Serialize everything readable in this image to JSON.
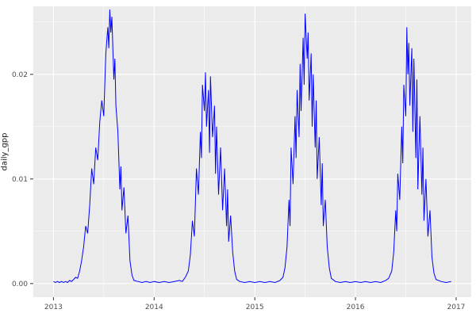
{
  "figure": {
    "kind": "ggplot2-style time series plot",
    "background": "#FFFFFF"
  },
  "chart_data": {
    "type": "line",
    "title": "",
    "xlabel": "",
    "ylabel": "daily_gpp",
    "line_color": "#0000FF",
    "panel_bg": "#EBEBEB",
    "grid_color": "#FFFFFF",
    "tick_color": "#333333",
    "tick_label_color": "#4D4D4D",
    "legend": "none",
    "xlim": [
      2012.8,
      2017.15
    ],
    "ylim": [
      -0.0013,
      0.0265
    ],
    "x_tick_values": [
      2013,
      2014,
      2015,
      2016,
      2017
    ],
    "x_tick_labels": [
      "2013",
      "2014",
      "2015",
      "2016",
      "2017"
    ],
    "y_tick_values": [
      0.0,
      0.01,
      0.02
    ],
    "y_tick_labels": [
      "0.00",
      "0.01",
      "0.02"
    ],
    "x_minor_ticks": [
      2013.5,
      2014.5,
      2015.5,
      2016.5
    ],
    "y_minor_ticks": [
      0.005,
      0.015,
      0.025
    ],
    "series": [
      {
        "name": "daily_gpp",
        "points": [
          [
            2013.0,
            0.0002
          ],
          [
            2013.02,
            0.0001
          ],
          [
            2013.04,
            0.0002
          ],
          [
            2013.06,
            0.0001
          ],
          [
            2013.08,
            0.0002
          ],
          [
            2013.1,
            0.0001
          ],
          [
            2013.12,
            0.0002
          ],
          [
            2013.14,
            0.0001
          ],
          [
            2013.16,
            0.0003
          ],
          [
            2013.18,
            0.0002
          ],
          [
            2013.2,
            0.0004
          ],
          [
            2013.22,
            0.0006
          ],
          [
            2013.24,
            0.0005
          ],
          [
            2013.26,
            0.0012
          ],
          [
            2013.28,
            0.0022
          ],
          [
            2013.3,
            0.0035
          ],
          [
            2013.32,
            0.0055
          ],
          [
            2013.34,
            0.0048
          ],
          [
            2013.36,
            0.0075
          ],
          [
            2013.38,
            0.011
          ],
          [
            2013.4,
            0.0095
          ],
          [
            2013.42,
            0.013
          ],
          [
            2013.44,
            0.0118
          ],
          [
            2013.46,
            0.0155
          ],
          [
            2013.48,
            0.0175
          ],
          [
            2013.5,
            0.016
          ],
          [
            2013.52,
            0.022
          ],
          [
            2013.54,
            0.0245
          ],
          [
            2013.55,
            0.0225
          ],
          [
            2013.56,
            0.0262
          ],
          [
            2013.57,
            0.024
          ],
          [
            2013.58,
            0.0255
          ],
          [
            2013.6,
            0.0195
          ],
          [
            2013.61,
            0.0215
          ],
          [
            2013.62,
            0.017
          ],
          [
            2013.64,
            0.0145
          ],
          [
            2013.66,
            0.009
          ],
          [
            2013.67,
            0.0112
          ],
          [
            2013.68,
            0.007
          ],
          [
            2013.7,
            0.0092
          ],
          [
            2013.72,
            0.0048
          ],
          [
            2013.74,
            0.0065
          ],
          [
            2013.76,
            0.0022
          ],
          [
            2013.78,
            0.0008
          ],
          [
            2013.8,
            0.0003
          ],
          [
            2013.84,
            0.0002
          ],
          [
            2013.88,
            0.0001
          ],
          [
            2013.92,
            0.0002
          ],
          [
            2013.96,
            0.0001
          ],
          [
            2014.0,
            0.0002
          ],
          [
            2014.05,
            0.0001
          ],
          [
            2014.1,
            0.0002
          ],
          [
            2014.15,
            0.0001
          ],
          [
            2014.2,
            0.0002
          ],
          [
            2014.25,
            0.0003
          ],
          [
            2014.28,
            0.0002
          ],
          [
            2014.31,
            0.0006
          ],
          [
            2014.34,
            0.0012
          ],
          [
            2014.36,
            0.0028
          ],
          [
            2014.38,
            0.006
          ],
          [
            2014.4,
            0.0045
          ],
          [
            2014.42,
            0.011
          ],
          [
            2014.44,
            0.0085
          ],
          [
            2014.46,
            0.0145
          ],
          [
            2014.47,
            0.012
          ],
          [
            2014.48,
            0.019
          ],
          [
            2014.5,
            0.0165
          ],
          [
            2014.51,
            0.0202
          ],
          [
            2014.52,
            0.015
          ],
          [
            2014.54,
            0.0185
          ],
          [
            2014.55,
            0.0125
          ],
          [
            2014.56,
            0.0198
          ],
          [
            2014.58,
            0.014
          ],
          [
            2014.6,
            0.017
          ],
          [
            2014.61,
            0.0105
          ],
          [
            2014.62,
            0.015
          ],
          [
            2014.64,
            0.0085
          ],
          [
            2014.66,
            0.013
          ],
          [
            2014.68,
            0.007
          ],
          [
            2014.7,
            0.011
          ],
          [
            2014.72,
            0.0055
          ],
          [
            2014.73,
            0.009
          ],
          [
            2014.74,
            0.004
          ],
          [
            2014.76,
            0.0065
          ],
          [
            2014.78,
            0.003
          ],
          [
            2014.8,
            0.0012
          ],
          [
            2014.82,
            0.0004
          ],
          [
            2014.85,
            0.0002
          ],
          [
            2014.9,
            0.0001
          ],
          [
            2014.95,
            0.0002
          ],
          [
            2015.0,
            0.0001
          ],
          [
            2015.05,
            0.0002
          ],
          [
            2015.1,
            0.0001
          ],
          [
            2015.15,
            0.0002
          ],
          [
            2015.2,
            0.0001
          ],
          [
            2015.25,
            0.0003
          ],
          [
            2015.28,
            0.0006
          ],
          [
            2015.3,
            0.0015
          ],
          [
            2015.32,
            0.0035
          ],
          [
            2015.34,
            0.008
          ],
          [
            2015.35,
            0.0055
          ],
          [
            2015.36,
            0.013
          ],
          [
            2015.38,
            0.0095
          ],
          [
            2015.4,
            0.016
          ],
          [
            2015.41,
            0.012
          ],
          [
            2015.42,
            0.0185
          ],
          [
            2015.44,
            0.014
          ],
          [
            2015.45,
            0.021
          ],
          [
            2015.46,
            0.0165
          ],
          [
            2015.48,
            0.0235
          ],
          [
            2015.49,
            0.019
          ],
          [
            2015.5,
            0.0258
          ],
          [
            2015.52,
            0.0215
          ],
          [
            2015.53,
            0.024
          ],
          [
            2015.54,
            0.0175
          ],
          [
            2015.56,
            0.022
          ],
          [
            2015.57,
            0.015
          ],
          [
            2015.58,
            0.02
          ],
          [
            2015.6,
            0.013
          ],
          [
            2015.61,
            0.0175
          ],
          [
            2015.62,
            0.01
          ],
          [
            2015.64,
            0.014
          ],
          [
            2015.66,
            0.0075
          ],
          [
            2015.67,
            0.0115
          ],
          [
            2015.68,
            0.0055
          ],
          [
            2015.7,
            0.008
          ],
          [
            2015.72,
            0.0035
          ],
          [
            2015.74,
            0.0015
          ],
          [
            2015.76,
            0.0005
          ],
          [
            2015.8,
            0.0002
          ],
          [
            2015.85,
            0.0001
          ],
          [
            2015.9,
            0.0002
          ],
          [
            2015.95,
            0.0001
          ],
          [
            2016.0,
            0.0002
          ],
          [
            2016.05,
            0.0001
          ],
          [
            2016.1,
            0.0002
          ],
          [
            2016.15,
            0.0001
          ],
          [
            2016.2,
            0.0002
          ],
          [
            2016.25,
            0.0001
          ],
          [
            2016.3,
            0.0003
          ],
          [
            2016.33,
            0.0005
          ],
          [
            2016.36,
            0.0012
          ],
          [
            2016.38,
            0.003
          ],
          [
            2016.4,
            0.007
          ],
          [
            2016.41,
            0.005
          ],
          [
            2016.42,
            0.0105
          ],
          [
            2016.44,
            0.008
          ],
          [
            2016.46,
            0.015
          ],
          [
            2016.47,
            0.0115
          ],
          [
            2016.48,
            0.019
          ],
          [
            2016.5,
            0.016
          ],
          [
            2016.51,
            0.0245
          ],
          [
            2016.52,
            0.02
          ],
          [
            2016.53,
            0.023
          ],
          [
            2016.54,
            0.017
          ],
          [
            2016.56,
            0.0225
          ],
          [
            2016.57,
            0.0145
          ],
          [
            2016.58,
            0.0215
          ],
          [
            2016.6,
            0.012
          ],
          [
            2016.61,
            0.0195
          ],
          [
            2016.62,
            0.009
          ],
          [
            2016.64,
            0.016
          ],
          [
            2016.66,
            0.0085
          ],
          [
            2016.67,
            0.013
          ],
          [
            2016.68,
            0.006
          ],
          [
            2016.7,
            0.01
          ],
          [
            2016.72,
            0.0045
          ],
          [
            2016.74,
            0.007
          ],
          [
            2016.76,
            0.0025
          ],
          [
            2016.78,
            0.001
          ],
          [
            2016.8,
            0.0004
          ],
          [
            2016.85,
            0.0002
          ],
          [
            2016.9,
            0.0001
          ],
          [
            2016.95,
            0.0002
          ]
        ]
      }
    ]
  }
}
